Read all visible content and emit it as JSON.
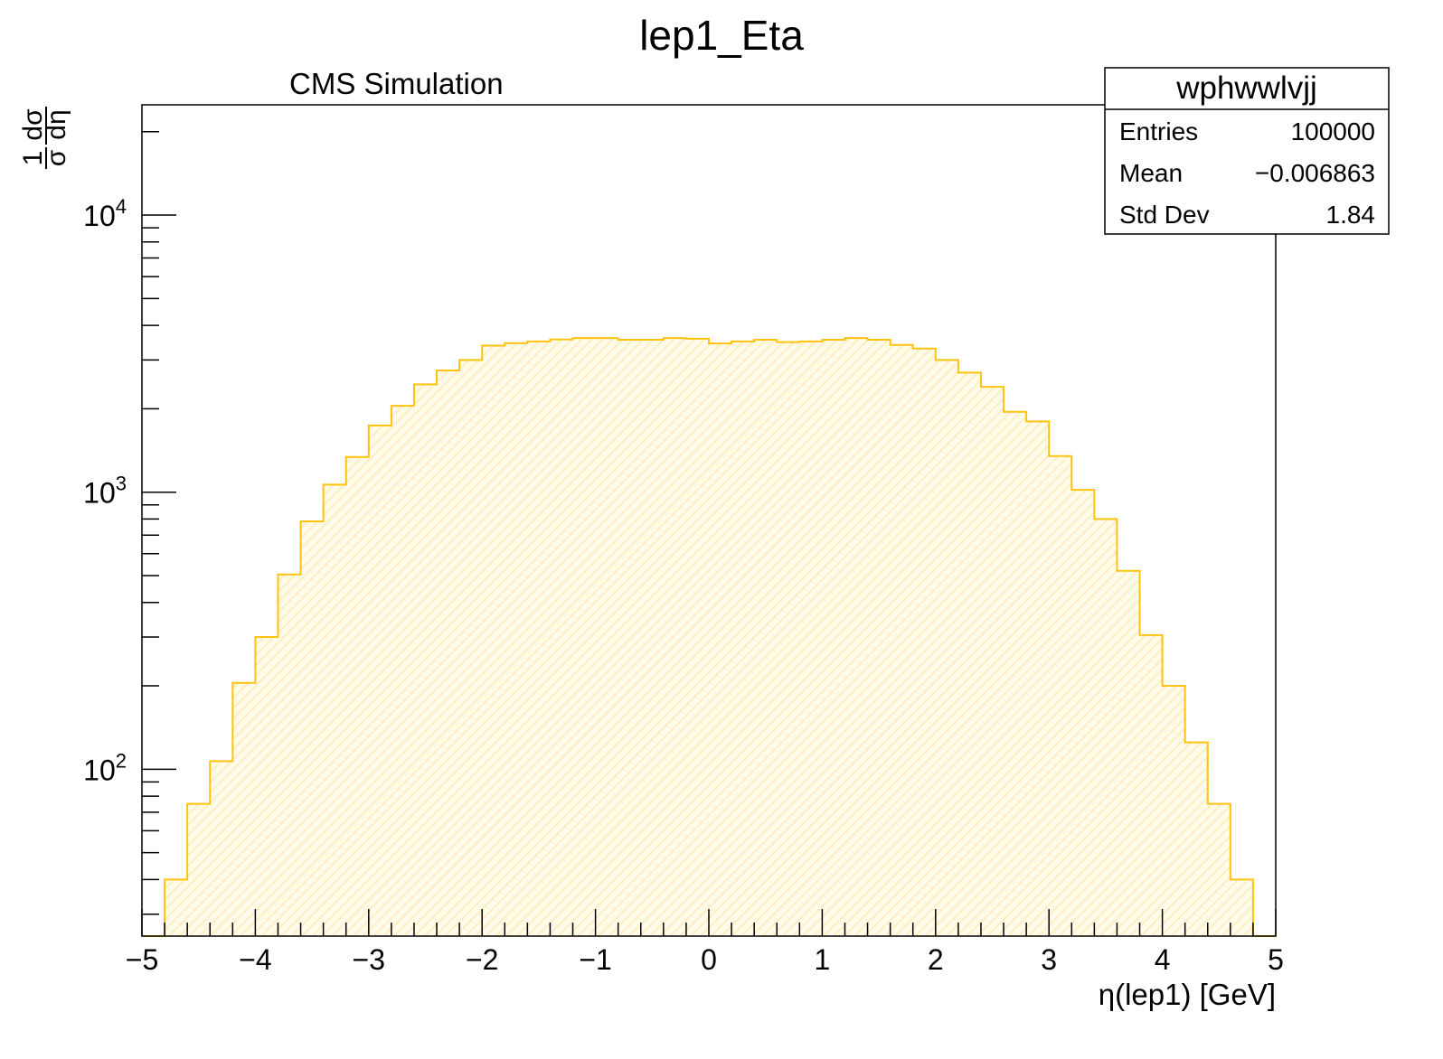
{
  "chart_data": {
    "type": "histogram",
    "title": "lep1_Eta",
    "subtitle": "CMS Simulation",
    "xlabel": "η(lep1) [GeV]",
    "ylabel": {
      "numerator_left": "1",
      "denominator_left": "σ",
      "numerator_right": "dσ",
      "denominator_right": "dη"
    },
    "x_range": [
      -5,
      5
    ],
    "y_range": [
      25,
      25000
    ],
    "y_scale": "log",
    "x_ticks": [
      "−5",
      "−4",
      "−3",
      "−2",
      "−1",
      "0",
      "1",
      "2",
      "3",
      "4",
      "5"
    ],
    "y_ticks": [
      {
        "base": "10",
        "exp": "2",
        "value": 100
      },
      {
        "base": "10",
        "exp": "3",
        "value": 1000
      },
      {
        "base": "10",
        "exp": "4",
        "value": 10000
      }
    ],
    "bin_width": 0.2,
    "x_bin_edges_start": -5,
    "values": [
      0,
      40,
      75,
      107,
      205,
      300,
      505,
      785,
      1065,
      1340,
      1740,
      2050,
      2450,
      2750,
      3000,
      3380,
      3450,
      3500,
      3560,
      3600,
      3600,
      3550,
      3550,
      3600,
      3580,
      3440,
      3500,
      3550,
      3480,
      3500,
      3550,
      3600,
      3550,
      3400,
      3300,
      3000,
      2700,
      2400,
      1950,
      1800,
      1350,
      1020,
      800,
      520,
      305,
      200,
      125,
      75,
      40,
      0
    ],
    "series_name": "wphwwlvjj",
    "line_color": "#FFC20E",
    "fill_color": "#FFE9A8",
    "fill_style": "hatched",
    "stats_box": {
      "title": "wphwwlvjj",
      "rows": [
        {
          "label": "Entries",
          "value": "100000"
        },
        {
          "label": "Mean",
          "value": "−0.006863"
        },
        {
          "label": "Std Dev",
          "value": "1.84"
        }
      ]
    }
  }
}
